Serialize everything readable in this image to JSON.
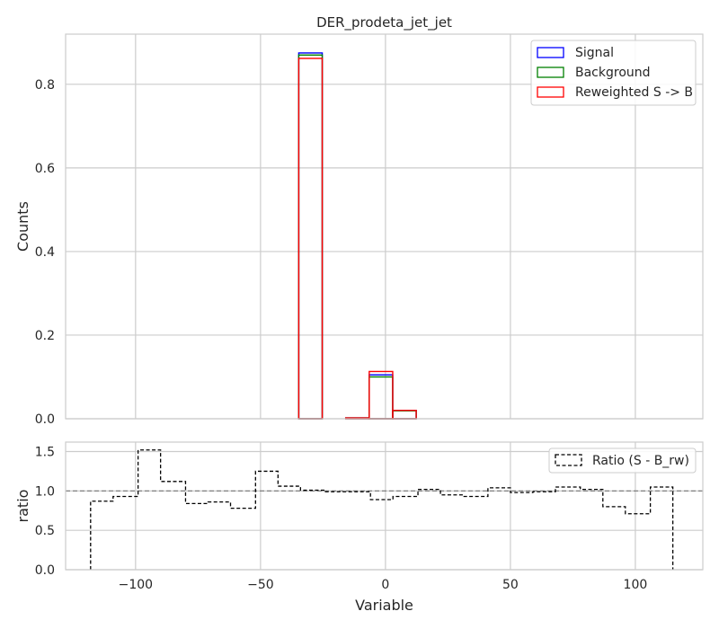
{
  "chart_data": [
    {
      "type": "histogram",
      "title": "DER_prodeta_jet_jet",
      "xlabel": "",
      "ylabel": "Counts",
      "xlim": [
        -128,
        127
      ],
      "ylim": [
        0,
        0.92
      ],
      "yticks": [
        "0.0",
        "0.2",
        "0.4",
        "0.6",
        "0.8"
      ],
      "ytick_values": [
        0,
        0.2,
        0.4,
        0.6,
        0.8
      ],
      "xtick_values": [
        -100,
        -50,
        0,
        50,
        100
      ],
      "grid": true,
      "legend_position": "top-right",
      "series": [
        {
          "name": "Signal",
          "color": "#0000ff",
          "bins": [
            {
              "x0": -34.7,
              "x1": -25.3,
              "y": 0.875
            },
            {
              "x0": -15.9,
              "x1": -6.5,
              "y": 0.002
            },
            {
              "x0": -6.5,
              "x1": 2.9,
              "y": 0.105
            },
            {
              "x0": 2.9,
              "x1": 12.3,
              "y": 0.02
            }
          ]
        },
        {
          "name": "Background",
          "color": "#008000",
          "bins": [
            {
              "x0": -34.7,
              "x1": -25.3,
              "y": 0.87
            },
            {
              "x0": -15.9,
              "x1": -6.5,
              "y": 0.002
            },
            {
              "x0": -6.5,
              "x1": 2.9,
              "y": 0.1
            },
            {
              "x0": 2.9,
              "x1": 12.3,
              "y": 0.019
            }
          ]
        },
        {
          "name": "Reweighted S -> B",
          "color": "#ff0000",
          "bins": [
            {
              "x0": -34.7,
              "x1": -25.3,
              "y": 0.862
            },
            {
              "x0": -15.9,
              "x1": -6.5,
              "y": 0.002
            },
            {
              "x0": -6.5,
              "x1": 2.9,
              "y": 0.113
            },
            {
              "x0": 2.9,
              "x1": 12.3,
              "y": 0.02
            }
          ]
        }
      ]
    },
    {
      "type": "step",
      "xlabel": "Variable",
      "ylabel": "ratio",
      "xlim": [
        -128,
        127
      ],
      "ylim": [
        0,
        1.62
      ],
      "xticks": [
        "−100",
        "−50",
        "0",
        "50",
        "100"
      ],
      "xtick_values": [
        -100,
        -50,
        0,
        50,
        100
      ],
      "yticks": [
        "0.0",
        "0.5",
        "1.0",
        "1.5"
      ],
      "ytick_values": [
        0,
        0.5,
        1.0,
        1.5
      ],
      "reference_line": 1.0,
      "grid": true,
      "legend_position": "top-right",
      "series": [
        {
          "name": "Ratio (S - B_rw)",
          "color": "#000000",
          "edges": [
            -118,
            -109,
            -99,
            -90,
            -80,
            -71,
            -62,
            -52,
            -43,
            -34,
            -24,
            -15,
            -6,
            3,
            13,
            22,
            31,
            41,
            50,
            59,
            68,
            78,
            87,
            96,
            106,
            115
          ],
          "values": [
            0.87,
            0.93,
            1.52,
            1.12,
            0.84,
            0.86,
            0.78,
            1.25,
            1.06,
            1.01,
            0.99,
            0.99,
            0.89,
            0.93,
            1.02,
            0.95,
            0.93,
            1.04,
            0.98,
            0.99,
            1.05,
            1.02,
            0.8,
            0.71,
            1.05
          ]
        }
      ]
    }
  ]
}
